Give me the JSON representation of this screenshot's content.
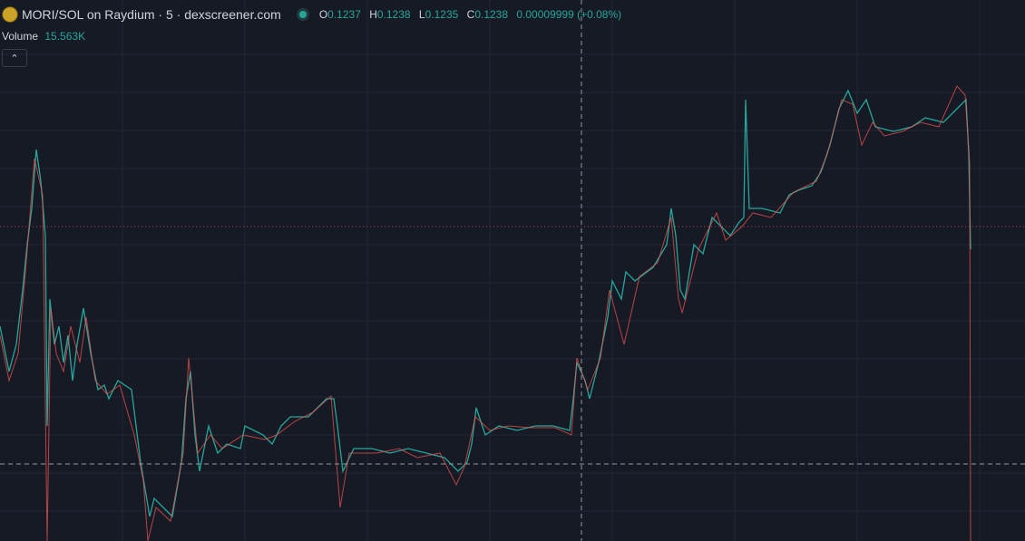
{
  "header": {
    "pair": "MORI/SOL on Raydium · 5 · dexscreener.com",
    "open_label": "O",
    "open": "0.1237",
    "high_label": "H",
    "high": "0.1238",
    "low_label": "L",
    "low": "0.1235",
    "close_label": "C",
    "close": "0.1238",
    "change": "0.00009999 (+0.08%)"
  },
  "volume": {
    "label": "Volume",
    "value": "15.563K"
  }
}
